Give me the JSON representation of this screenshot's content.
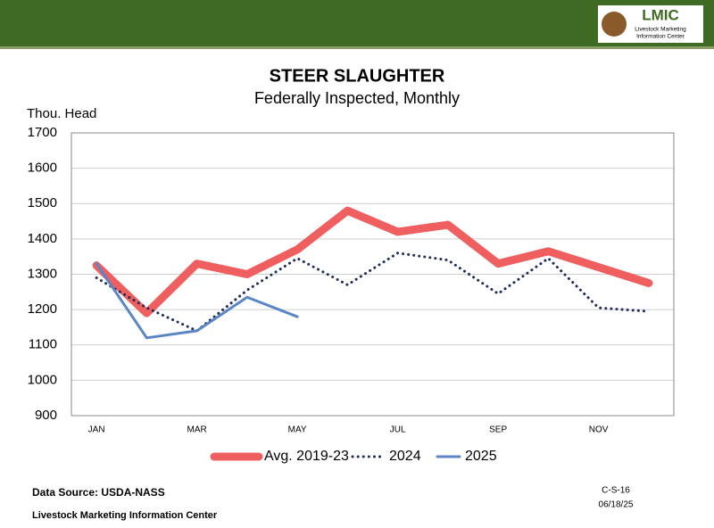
{
  "logo": {
    "title": "LMIC",
    "subtitle_1": "Livestock Marketing",
    "subtitle_2": "Information Center"
  },
  "chart_data": {
    "type": "line",
    "title": "STEER SLAUGHTER",
    "subtitle": "Federally Inspected, Monthly",
    "y_label": "Thou. Head",
    "categories": [
      "JAN",
      null,
      "MAR",
      null,
      "MAY",
      null,
      "JUL",
      null,
      "SEP",
      null,
      "NOV",
      null
    ],
    "ylim": [
      900,
      1700
    ],
    "yticks": [
      900,
      1000,
      1100,
      1200,
      1300,
      1400,
      1500,
      1600,
      1700
    ],
    "grid": true,
    "series": [
      {
        "name": "Avg. 2019-23",
        "color": "#ef5f5f",
        "style": "solid",
        "width": 9,
        "values": [
          1325,
          1190,
          1330,
          1300,
          1370,
          1480,
          1420,
          1440,
          1330,
          1365,
          1320,
          1275
        ]
      },
      {
        "name": "2024",
        "color": "#1f2d5a",
        "style": "dotted",
        "width": 3,
        "values": [
          1290,
          1205,
          1140,
          1255,
          1345,
          1270,
          1360,
          1340,
          1245,
          1345,
          1205,
          1195
        ]
      },
      {
        "name": "2025",
        "color": "#5b86c5",
        "style": "solid",
        "width": 3,
        "values": [
          1330,
          1120,
          1140,
          1235,
          1180,
          null,
          null,
          null,
          null,
          null,
          null,
          null
        ]
      }
    ]
  },
  "footer": {
    "source": "Data Source:  USDA-NASS",
    "org": "Livestock Marketing Information Center",
    "code": "C-S-16",
    "date": "06/18/25"
  }
}
